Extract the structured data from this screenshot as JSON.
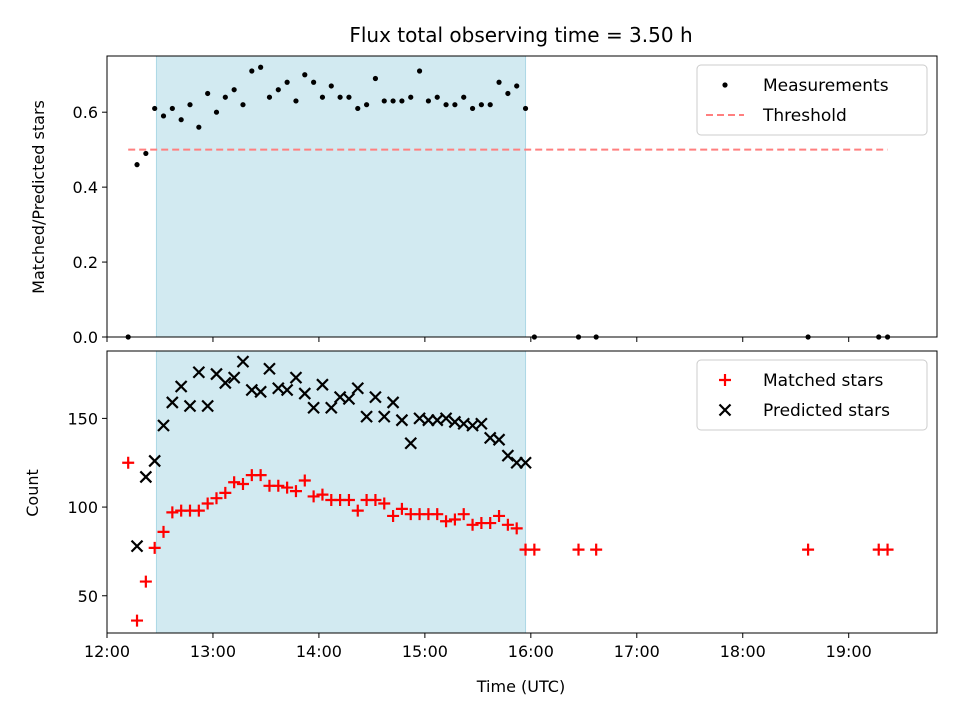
{
  "chart_data": [
    {
      "type": "scatter",
      "title": "Flux total observing time = 3.50 h",
      "ylabel": "Matched/Predicted stars",
      "xlim": [
        "12:00",
        "19:50"
      ],
      "ylim": [
        0,
        0.75
      ],
      "yticks": [
        "0.0",
        "0.2",
        "0.4",
        "0.6"
      ],
      "legend_position": "top-right",
      "shaded_interval": [
        "12:28",
        "15:57"
      ],
      "colors": {
        "shade": "#add8e6",
        "measurements": "#000000",
        "threshold": "#ff7f7f"
      },
      "series": [
        {
          "name": "Measurements",
          "marker": "dot",
          "x": [
            "12:12",
            "12:17",
            "12:22",
            "12:27",
            "12:32",
            "12:37",
            "12:42",
            "12:47",
            "12:52",
            "12:57",
            "13:02",
            "13:07",
            "13:12",
            "13:17",
            "13:22",
            "13:27",
            "13:32",
            "13:37",
            "13:42",
            "13:47",
            "13:52",
            "13:57",
            "14:02",
            "14:07",
            "14:12",
            "14:17",
            "14:22",
            "14:27",
            "14:32",
            "14:37",
            "14:42",
            "14:47",
            "14:52",
            "14:57",
            "15:02",
            "15:07",
            "15:12",
            "15:17",
            "15:22",
            "15:27",
            "15:32",
            "15:37",
            "15:42",
            "15:47",
            "15:52",
            "15:57",
            "16:02",
            "16:27",
            "16:37",
            "18:37",
            "19:17",
            "19:22"
          ],
          "y": [
            0.0,
            0.46,
            0.49,
            0.61,
            0.59,
            0.61,
            0.58,
            0.62,
            0.56,
            0.65,
            0.6,
            0.64,
            0.66,
            0.62,
            0.71,
            0.72,
            0.64,
            0.66,
            0.68,
            0.63,
            0.7,
            0.68,
            0.64,
            0.67,
            0.64,
            0.64,
            0.61,
            0.62,
            0.69,
            0.63,
            0.63,
            0.63,
            0.64,
            0.71,
            0.63,
            0.64,
            0.62,
            0.62,
            0.64,
            0.61,
            0.62,
            0.62,
            0.68,
            0.65,
            0.67,
            0.61,
            0.0,
            0.0,
            0.0,
            0.0,
            0.0,
            0.0
          ]
        },
        {
          "name": "Threshold",
          "marker": "dashed-line",
          "x": [
            "12:12",
            "19:22"
          ],
          "y": [
            0.5,
            0.5
          ]
        }
      ]
    },
    {
      "type": "scatter",
      "xlabel": "Time (UTC)",
      "ylabel": "Count",
      "xlim": [
        "12:00",
        "19:50"
      ],
      "ylim": [
        29,
        188
      ],
      "yticks": [
        "50",
        "100",
        "150"
      ],
      "xticks": [
        "12:00",
        "13:00",
        "14:00",
        "15:00",
        "16:00",
        "17:00",
        "18:00",
        "19:00"
      ],
      "legend_position": "top-right",
      "shaded_interval": [
        "12:28",
        "15:57"
      ],
      "colors": {
        "shade": "#add8e6",
        "matched": "#ff0000",
        "predicted": "#000000"
      },
      "series": [
        {
          "name": "Matched stars",
          "marker": "plus",
          "x": [
            "12:12",
            "12:17",
            "12:22",
            "12:27",
            "12:32",
            "12:37",
            "12:42",
            "12:47",
            "12:52",
            "12:57",
            "13:02",
            "13:07",
            "13:12",
            "13:17",
            "13:22",
            "13:27",
            "13:32",
            "13:37",
            "13:42",
            "13:47",
            "13:52",
            "13:57",
            "14:02",
            "14:07",
            "14:12",
            "14:17",
            "14:22",
            "14:27",
            "14:32",
            "14:37",
            "14:42",
            "14:47",
            "14:52",
            "14:57",
            "15:02",
            "15:07",
            "15:12",
            "15:17",
            "15:22",
            "15:27",
            "15:32",
            "15:37",
            "15:42",
            "15:47",
            "15:52",
            "15:57",
            "16:02",
            "16:27",
            "16:37",
            "18:37",
            "19:17",
            "19:22"
          ],
          "y": [
            125,
            36,
            58,
            77,
            86,
            97,
            98,
            98,
            98,
            102,
            105,
            108,
            114,
            113,
            118,
            118,
            112,
            112,
            111,
            109,
            115,
            106,
            107,
            104,
            104,
            104,
            98,
            104,
            104,
            102,
            95,
            99,
            96,
            96,
            96,
            96,
            92,
            93,
            96,
            90,
            91,
            91,
            95,
            90,
            88,
            76,
            76,
            76,
            76,
            76,
            76,
            76
          ]
        },
        {
          "name": "Predicted stars",
          "marker": "x",
          "x": [
            "12:17",
            "12:22",
            "12:27",
            "12:32",
            "12:37",
            "12:42",
            "12:47",
            "12:52",
            "12:57",
            "13:02",
            "13:07",
            "13:12",
            "13:17",
            "13:22",
            "13:27",
            "13:32",
            "13:37",
            "13:42",
            "13:47",
            "13:52",
            "13:57",
            "14:02",
            "14:07",
            "14:12",
            "14:17",
            "14:22",
            "14:27",
            "14:32",
            "14:37",
            "14:42",
            "14:47",
            "14:52",
            "14:57",
            "15:02",
            "15:07",
            "15:12",
            "15:17",
            "15:22",
            "15:27",
            "15:32",
            "15:37",
            "15:42",
            "15:47",
            "15:52",
            "15:57"
          ],
          "y": [
            78,
            117,
            126,
            146,
            159,
            168,
            157,
            176,
            157,
            175,
            170,
            173,
            182,
            166,
            165,
            178,
            167,
            166,
            173,
            164,
            156,
            169,
            156,
            162,
            161,
            167,
            151,
            162,
            151,
            159,
            149,
            136,
            150,
            149,
            149,
            150,
            148,
            147,
            146,
            147,
            139,
            138,
            129,
            125,
            125
          ]
        }
      ]
    }
  ]
}
